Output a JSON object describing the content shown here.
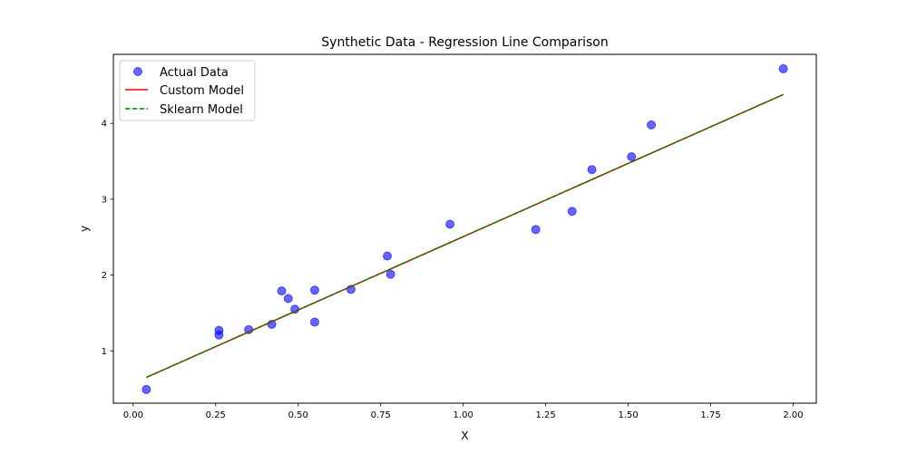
{
  "chart_data": {
    "type": "scatter",
    "title": "Synthetic Data - Regression Line Comparison",
    "xlabel": "X",
    "ylabel": "y",
    "xlim": [
      -0.06,
      2.07
    ],
    "ylim": [
      0.31,
      4.91
    ],
    "xticks": [
      0.0,
      0.25,
      0.5,
      0.75,
      1.0,
      1.25,
      1.5,
      1.75,
      2.0
    ],
    "xtick_labels": [
      "0.00",
      "0.25",
      "0.50",
      "0.75",
      "1.00",
      "1.25",
      "1.50",
      "1.75",
      "2.00"
    ],
    "yticks": [
      1,
      2,
      3,
      4
    ],
    "ytick_labels": [
      "1",
      "2",
      "3",
      "4"
    ],
    "grid": false,
    "legend_position": "top-left",
    "series": [
      {
        "name": "Actual Data",
        "kind": "scatter",
        "color": "#0000ff",
        "alpha": 0.6,
        "points": [
          [
            0.04,
            0.49
          ],
          [
            0.26,
            1.21
          ],
          [
            0.26,
            1.27
          ],
          [
            0.35,
            1.28
          ],
          [
            0.42,
            1.35
          ],
          [
            0.45,
            1.79
          ],
          [
            0.47,
            1.69
          ],
          [
            0.49,
            1.55
          ],
          [
            0.55,
            1.38
          ],
          [
            0.55,
            1.8
          ],
          [
            0.66,
            1.81
          ],
          [
            0.77,
            2.25
          ],
          [
            0.78,
            2.01
          ],
          [
            0.96,
            2.67
          ],
          [
            1.22,
            2.6
          ],
          [
            1.33,
            2.84
          ],
          [
            1.39,
            3.39
          ],
          [
            1.51,
            3.56
          ],
          [
            1.57,
            3.98
          ],
          [
            1.97,
            4.72
          ]
        ]
      },
      {
        "name": "Custom Model",
        "kind": "line",
        "color": "#ff0000",
        "dash": "solid",
        "points": [
          [
            0.04,
            0.65
          ],
          [
            1.97,
            4.38
          ]
        ]
      },
      {
        "name": "Sklearn Model",
        "kind": "line",
        "color": "#008000",
        "dash": "dashed",
        "points": [
          [
            0.04,
            0.65
          ],
          [
            1.97,
            4.38
          ]
        ]
      }
    ]
  }
}
